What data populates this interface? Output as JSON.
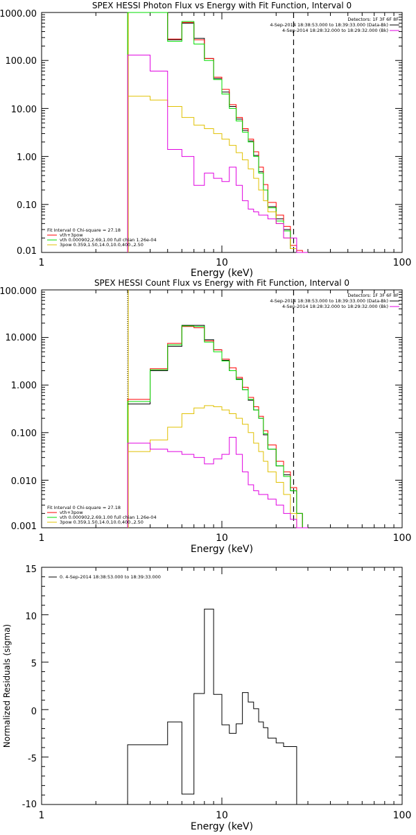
{
  "colors": {
    "black": "#000000",
    "red": "#ff0000",
    "green": "#00dd00",
    "magenta": "#e000e0",
    "yellow": "#e0c000"
  },
  "chart_data": [
    {
      "type": "line",
      "title": "SPEX HESSI Photon Flux vs Energy with Fit Function, Interval 0",
      "xlabel": "Energy (keV)",
      "ylabel": "",
      "xscale": "log",
      "yscale": "log",
      "xlim": [
        1,
        100
      ],
      "ylim": [
        0.01,
        1000
      ],
      "xticks": [
        "1",
        "10",
        "100"
      ],
      "yticks": [
        "1000.00",
        "100.00",
        "10.00",
        "1.00",
        "0.10",
        "0.01"
      ],
      "legend_top": [
        "Detectors: 1F 3F 6F 8F",
        "4-Sep-2014 18:38:53.000 to 18:39:33.000 (Data-Bk)",
        "4-Sep-2014 18:28:32.000 to 18:29:32.000 (Bk)"
      ],
      "legend_bottom": [
        "Fit Interval 0   Chi-square = 27.18",
        "vth+3pow",
        "vth 0.000902,2.69,1.00  full chian 1.26e-04",
        "3pow 0.359,1.50,14.0,10.0,400.,2.50"
      ],
      "vlines": [
        3.0,
        25.0
      ],
      "edges": [
        3.0,
        4.0,
        5.0,
        6.0,
        7.0,
        8.0,
        9.0,
        10.0,
        11.0,
        12.0,
        13.0,
        14.0,
        15.0,
        16.0,
        17.0,
        18.0,
        20.0,
        22.0,
        24.0,
        26.0,
        28.0,
        30.0
      ],
      "series": [
        {
          "key": "data",
          "color": "black",
          "values": [
            1000,
            1000,
            270,
            600,
            290,
            110,
            42,
            22,
            11,
            6.0,
            3.5,
            2.1,
            1.05,
            0.48,
            0.2,
            0.09,
            0.05,
            0.03,
            0.012,
            0.01,
            0.01
          ]
        },
        {
          "key": "red",
          "color": "red",
          "values": [
            1000,
            1000,
            280,
            620,
            270,
            110,
            45,
            25,
            12,
            6.5,
            3.8,
            2.3,
            1.25,
            0.6,
            0.26,
            0.11,
            0.06,
            0.035,
            0.014,
            0.011,
            0.01
          ]
        },
        {
          "key": "vth",
          "color": "green",
          "values": [
            1000,
            1000,
            250,
            650,
            220,
            100,
            40,
            20,
            10,
            5.5,
            3.2,
            2.0,
            1.0,
            0.45,
            0.2,
            0.085,
            0.045,
            0.028,
            0.012,
            0.01,
            0.01
          ]
        },
        {
          "key": "3pow",
          "color": "yellow",
          "values": [
            18,
            15,
            11,
            6.5,
            4.5,
            3.8,
            3.0,
            2.3,
            1.7,
            1.2,
            0.85,
            0.55,
            0.35,
            0.2,
            0.12,
            0.07,
            0.04,
            0.02,
            0.012,
            0.01,
            0.01
          ]
        },
        {
          "key": "bk",
          "color": "magenta",
          "values": [
            130,
            60,
            1.4,
            1.0,
            0.25,
            0.45,
            0.35,
            0.3,
            0.6,
            0.25,
            0.12,
            0.08,
            0.07,
            0.06,
            0.06,
            0.05,
            0.04,
            0.02,
            0.02,
            0.01,
            0.01
          ]
        }
      ]
    },
    {
      "type": "line",
      "title": "SPEX HESSI Count Flux vs Energy with Fit Function, Interval 0",
      "xlabel": "Energy (keV)",
      "ylabel": "",
      "xscale": "log",
      "yscale": "log",
      "xlim": [
        1,
        100
      ],
      "ylim": [
        0.001,
        100
      ],
      "xticks": [
        "1",
        "10",
        "100"
      ],
      "yticks": [
        "100.000",
        "10.000",
        "1.000",
        "0.100",
        "0.010",
        "0.001"
      ],
      "legend_top": [
        "Detectors: 1F 3F 6F 8F",
        "4-Sep-2014 18:38:53.000 to 18:39:33.000 (Data-Bk)",
        "4-Sep-2014 18:28:32.000 to 18:29:32.000 (Bk)"
      ],
      "legend_bottom": [
        "Fit Interval 0   Chi-square = 27.18",
        "vth+3pow",
        "vth 0.000902,2.69,1.00  full chian 1.26e-04",
        "3pow 0.359,1.50,14.0,10.0,400.,2.50"
      ],
      "vlines": [
        3.0,
        25.0
      ],
      "edges": [
        3.0,
        4.0,
        5.0,
        6.0,
        7.0,
        8.0,
        9.0,
        10.0,
        11.0,
        12.0,
        13.0,
        14.0,
        15.0,
        16.0,
        17.0,
        18.0,
        20.0,
        22.0,
        24.0,
        26.0,
        28.0,
        30.0
      ],
      "series": [
        {
          "key": "data",
          "color": "black",
          "values": [
            0.4,
            2.0,
            6.5,
            18,
            18,
            9,
            5.5,
            3.3,
            2.0,
            1.35,
            0.8,
            0.48,
            0.3,
            0.2,
            0.09,
            0.045,
            0.02,
            0.013,
            0.006,
            0.002,
            0.001
          ]
        },
        {
          "key": "red",
          "color": "red",
          "values": [
            0.5,
            2.2,
            7.5,
            17,
            16,
            8.5,
            5.5,
            3.5,
            2.3,
            1.45,
            0.9,
            0.55,
            0.35,
            0.22,
            0.11,
            0.055,
            0.025,
            0.015,
            0.007,
            0.002,
            0.001
          ]
        },
        {
          "key": "vth",
          "color": "green",
          "values": [
            0.45,
            2.1,
            7.0,
            17.5,
            17,
            8.0,
            5.0,
            3.2,
            2.0,
            1.3,
            0.8,
            0.5,
            0.3,
            0.2,
            0.095,
            0.045,
            0.02,
            0.012,
            0.006,
            0.002,
            0.001
          ]
        },
        {
          "key": "3pow",
          "color": "yellow",
          "values": [
            0.04,
            0.07,
            0.13,
            0.25,
            0.33,
            0.37,
            0.35,
            0.3,
            0.25,
            0.2,
            0.15,
            0.1,
            0.06,
            0.04,
            0.025,
            0.015,
            0.009,
            0.005,
            0.002,
            0.001,
            0.001
          ]
        },
        {
          "key": "bk",
          "color": "magenta",
          "values": [
            0.06,
            0.045,
            0.04,
            0.035,
            0.03,
            0.022,
            0.028,
            0.035,
            0.08,
            0.035,
            0.015,
            0.008,
            0.006,
            0.005,
            0.005,
            0.004,
            0.003,
            0.002,
            0.0015,
            0.001,
            0.001
          ]
        }
      ]
    },
    {
      "type": "line",
      "title": "",
      "xlabel": "Energy (keV)",
      "ylabel": "Normalized Residuals (sigma)",
      "xscale": "log",
      "yscale": "linear",
      "xlim": [
        1,
        100
      ],
      "ylim": [
        -10,
        15
      ],
      "xticks": [
        "1",
        "10",
        "100"
      ],
      "yticks": [
        "15",
        "10",
        "5",
        "0",
        "-5",
        "-10"
      ],
      "legend_top": [
        "0.  4-Sep-2014 18:38:53.000 to 18:39:33.000"
      ],
      "edges": [
        3.0,
        4.0,
        5.0,
        6.0,
        7.0,
        8.0,
        9.0,
        10.0,
        11.0,
        12.0,
        13.0,
        14.0,
        15.0,
        16.0,
        17.0,
        18.0,
        20.0,
        22.0,
        24.0,
        26.0
      ],
      "series": [
        {
          "key": "resid",
          "color": "black",
          "values": [
            -3.7,
            -3.7,
            -1.3,
            -8.9,
            1.7,
            10.6,
            1.6,
            -1.6,
            -2.5,
            -1.5,
            1.8,
            0.8,
            0.1,
            -1.3,
            -1.9,
            -3.0,
            -3.5,
            -3.9,
            -3.9
          ]
        }
      ]
    }
  ]
}
